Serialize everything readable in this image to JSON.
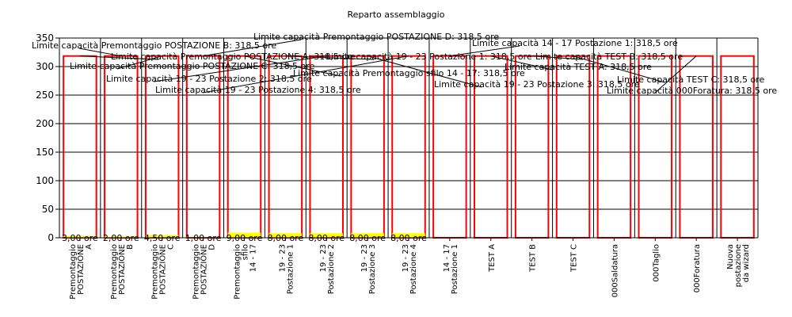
{
  "chart_data": {
    "type": "bar",
    "title": "Reparto assemblaggio",
    "xlabel": "",
    "ylabel": "",
    "ylim": [
      0,
      350
    ],
    "yticks": [
      0,
      50,
      100,
      150,
      200,
      250,
      300,
      350
    ],
    "grid": true,
    "categories": [
      [
        "Premontaggio",
        "POSTAZIONE",
        "A"
      ],
      [
        "Premontaggio",
        "POSTAZIONE",
        "B"
      ],
      [
        "Premontaggio",
        "POSTAZIONE",
        "C"
      ],
      [
        "Premontaggio",
        "POSTAZIONE",
        "D"
      ],
      [
        "Premontaggio",
        "sfilo",
        "14 - 17"
      ],
      [
        "19 - 23",
        "Postazione 1"
      ],
      [
        "19 - 23",
        "Postazione 2"
      ],
      [
        "19 - 23",
        "Postazione 3"
      ],
      [
        "19 - 23",
        "Postazione 4"
      ],
      [
        "14 - 17",
        "Postazione 1"
      ],
      [
        "TEST A"
      ],
      [
        "TEST B"
      ],
      [
        "TEST C"
      ],
      [
        "000Saldatura"
      ],
      [
        "000Taglio"
      ],
      [
        "000Foratura"
      ],
      [
        "Nuova",
        "postazione",
        "da wizard"
      ]
    ],
    "series": [
      {
        "values": [
          3,
          2,
          4.5,
          1,
          9,
          8,
          8,
          8,
          8,
          0,
          0,
          0,
          0,
          0,
          0,
          0,
          0
        ],
        "color": "#ffff00",
        "labels": [
          "3,00 ore",
          "2,00 ore",
          "4,50 ore",
          "1,00 ore",
          "9,00 ore",
          "8,00 ore",
          "8,00 ore",
          "8,00 ore",
          "8,00 ore",
          "",
          "",
          "",
          "",
          "",
          "",
          "",
          ""
        ]
      },
      {
        "values": [
          318.5,
          318.5,
          318.5,
          318.5,
          318.5,
          318.5,
          318.5,
          318.5,
          318.5,
          318.5,
          318.5,
          318.5,
          318.5,
          318.5,
          318.5,
          318.5,
          318.5
        ],
        "color": "#ff0000",
        "style": "outline"
      }
    ],
    "annotations": [
      {
        "text": "Limite capacità Premontaggio POSTAZIONE D: 318,5 ore",
        "category": 3
      },
      {
        "text": "Limite capacità Premontaggio POSTAZIONE B: 318,5 ore",
        "category": 1
      },
      {
        "text": "Limite capacità 14 - 17 Postazione 1: 318,5 ore",
        "category": 9
      },
      {
        "text": "Limite capacità Premontaggio POSTAZIONE A: 318,5 ore",
        "category": 0
      },
      {
        "text": "Limite capacità 19 - 23 Postazione 1: 318,5 ore",
        "category": 5
      },
      {
        "text": "Limite capacità TEST B: 318,5 ore",
        "category": 11
      },
      {
        "text": "Limite capacità Premontaggio POSTAZIONE C: 318,5 ore",
        "category": 2
      },
      {
        "text": "Limite capacità TEST A: 318,5 ore",
        "category": 10
      },
      {
        "text": "Limite capacità Premontaggio sfilo 14 - 17: 318,5 ore",
        "category": 4
      },
      {
        "text": "Limite capacità 19 - 23 Postazione 2: 318,5 ore",
        "category": 6
      },
      {
        "text": "Limite capacità TEST C: 318,5 ore",
        "category": 12
      },
      {
        "text": "Limite capacità 19 - 23 Postazione 3: 318,5 ore",
        "category": 7
      },
      {
        "text": "Limite capacità 19 - 23 Postazione 4: 318,5 ore",
        "category": 8
      },
      {
        "text": "Limite capacità 000Foratura: 318,5 ore",
        "category": 15
      }
    ]
  }
}
